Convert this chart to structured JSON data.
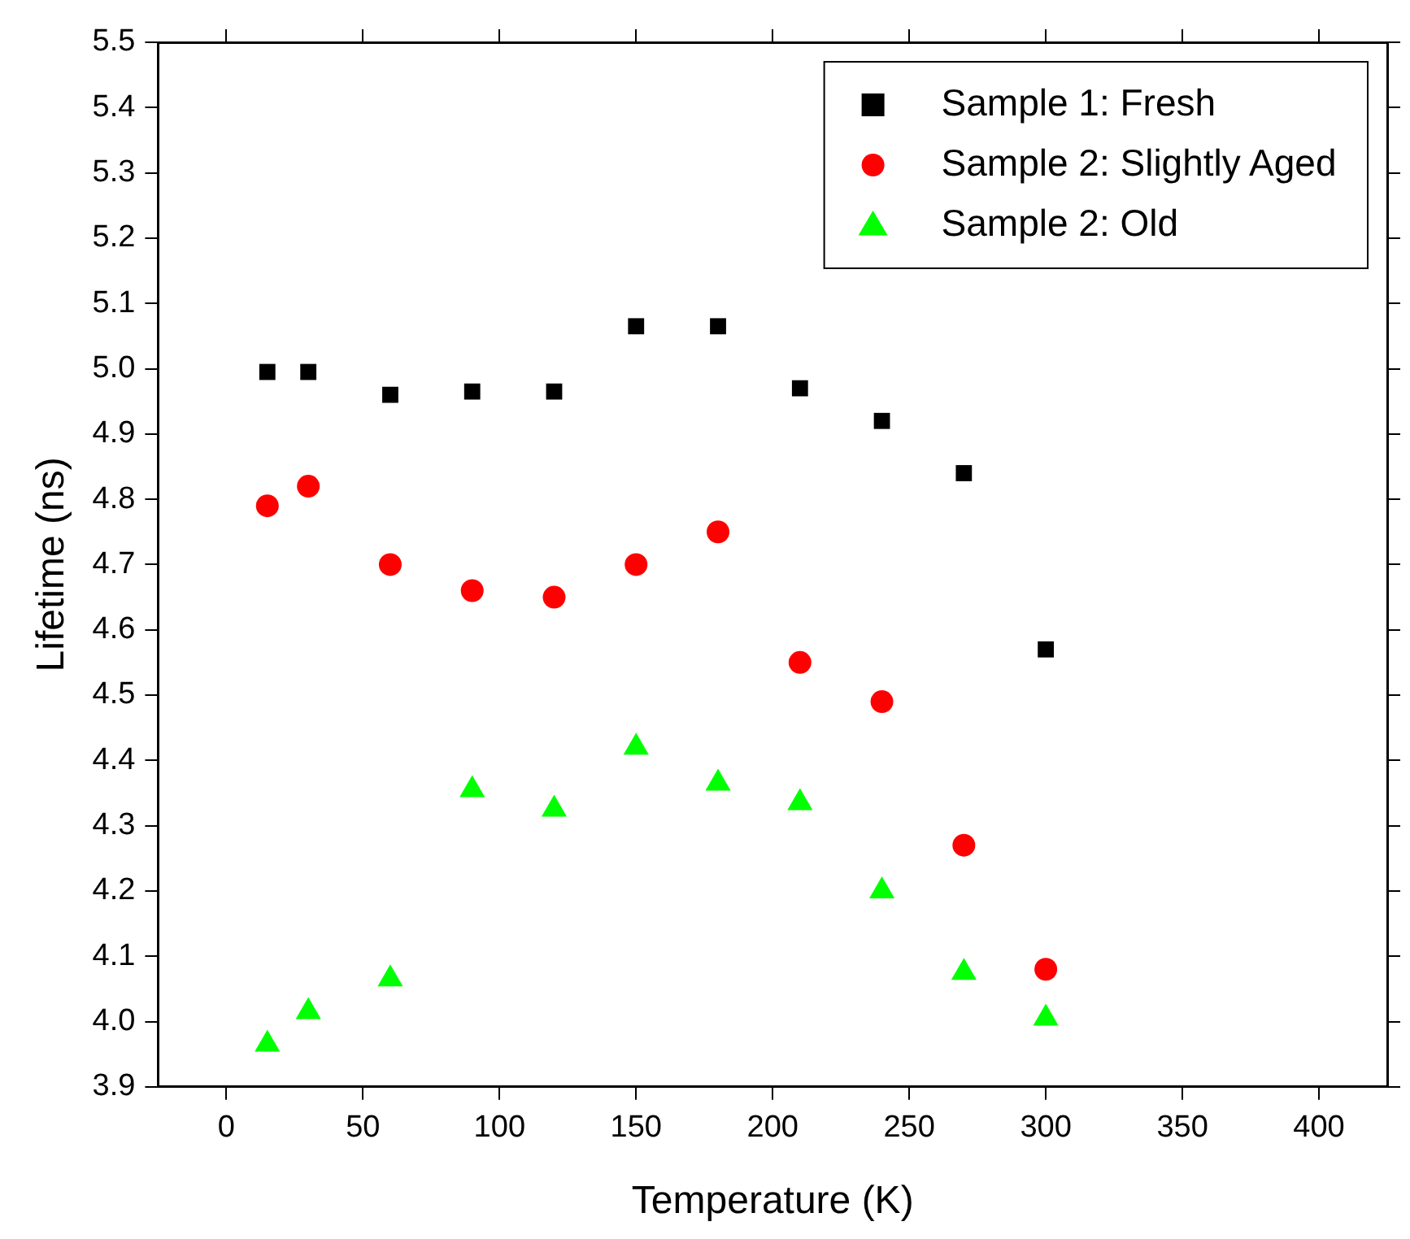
{
  "chart_data": {
    "type": "scatter",
    "xlabel": "Temperature (K)",
    "ylabel": "Lifetime (ns)",
    "x": [
      15,
      30,
      60,
      90,
      120,
      150,
      180,
      210,
      240,
      270,
      300
    ],
    "series": [
      {
        "name": "Sample 1: Fresh",
        "color": "#000000",
        "marker": "square",
        "values": [
          4.995,
          4.995,
          4.96,
          4.965,
          4.965,
          5.065,
          5.065,
          4.97,
          4.92,
          4.84,
          4.57
        ]
      },
      {
        "name": "Sample 2: Slightly Aged",
        "color": "#ff0000",
        "marker": "circle",
        "values": [
          4.79,
          4.82,
          4.7,
          4.66,
          4.65,
          4.7,
          4.75,
          4.55,
          4.49,
          4.27,
          4.08
        ]
      },
      {
        "name": "Sample 2: Old",
        "color": "#00ff00",
        "marker": "triangle",
        "values": [
          3.965,
          4.015,
          4.065,
          4.355,
          4.325,
          4.42,
          4.365,
          4.335,
          4.2,
          4.075,
          4.005
        ]
      }
    ],
    "xlim": [
      -25,
      425
    ],
    "xticks": [
      0,
      50,
      100,
      150,
      200,
      250,
      300,
      350,
      400
    ],
    "ylim": [
      3.9,
      5.5
    ],
    "yticks": [
      {
        "value": 3.9,
        "label": "3.9"
      },
      {
        "value": 4,
        "label": "4.0"
      },
      {
        "value": 4.1,
        "label": "4.1"
      },
      {
        "value": 4.2,
        "label": "4.2"
      },
      {
        "value": 4.3,
        "label": "4.3"
      },
      {
        "value": 4.4,
        "label": "4.4"
      },
      {
        "value": 4.5,
        "label": "4.5"
      },
      {
        "value": 4.6,
        "label": "4.6"
      },
      {
        "value": 4.7,
        "label": "4.7"
      },
      {
        "value": 4.8,
        "label": "4.8"
      },
      {
        "value": 4.9,
        "label": "4.9"
      },
      {
        "value": 5,
        "label": "5.0"
      },
      {
        "value": 5.1,
        "label": "5.1"
      },
      {
        "value": 5.2,
        "label": "5.2"
      },
      {
        "value": 5.3,
        "label": "5.3"
      },
      {
        "value": 5.4,
        "label": "5.4"
      },
      {
        "value": 5.5,
        "label": "5.5"
      }
    ],
    "grid": false,
    "legend": "top right"
  }
}
